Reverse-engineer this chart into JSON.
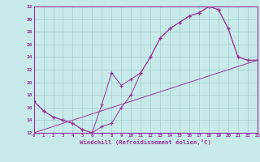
{
  "bg_color": "#c8eaea",
  "grid_color": "#a0cccc",
  "line_color": "#993399",
  "spine_color": "#993399",
  "xlim": [
    0,
    23
  ],
  "ylim": [
    12,
    32
  ],
  "ytick_vals": [
    12,
    14,
    16,
    18,
    20,
    22,
    24,
    26,
    28,
    30,
    32
  ],
  "xtick_vals": [
    0,
    1,
    2,
    3,
    4,
    5,
    6,
    7,
    8,
    9,
    10,
    11,
    12,
    13,
    14,
    15,
    16,
    17,
    18,
    19,
    20,
    21,
    22,
    23
  ],
  "xlabel": "Windchill (Refroidissement éolien,°C)",
  "curve1_x": [
    0,
    1,
    2,
    3,
    4,
    5,
    6,
    7,
    8,
    9,
    10,
    11,
    12,
    13,
    14,
    15,
    16,
    17,
    18,
    19,
    20,
    21,
    22,
    23
  ],
  "curve1_y": [
    17,
    15.5,
    14.5,
    14.0,
    13.5,
    12.5,
    12.0,
    13.0,
    13.5,
    16.0,
    18.0,
    21.5,
    24.0,
    27.0,
    28.5,
    29.5,
    30.5,
    31.0,
    32.0,
    31.5,
    28.5,
    24.0,
    23.5,
    23.5
  ],
  "curve2_x": [
    0,
    1,
    2,
    3,
    4,
    5,
    6,
    7,
    8,
    9,
    10,
    11,
    12,
    13,
    14,
    15,
    16,
    17,
    18,
    19,
    20,
    21,
    22,
    23
  ],
  "curve2_y": [
    17,
    15.5,
    14.5,
    14.0,
    13.5,
    12.5,
    12.0,
    16.5,
    21.5,
    19.5,
    20.5,
    21.5,
    24.0,
    27.0,
    28.5,
    29.5,
    30.5,
    31.0,
    32.0,
    31.5,
    28.5,
    24.0,
    23.5,
    23.5
  ],
  "curve3_x": [
    0,
    23
  ],
  "curve3_y": [
    12.0,
    23.5
  ]
}
